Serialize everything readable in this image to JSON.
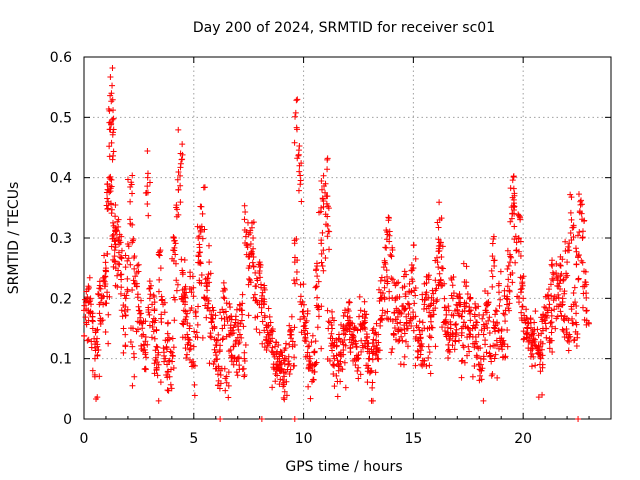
{
  "chart_data": {
    "type": "scatter",
    "title": "Day 200 of 2024, SRMTID for receiver sc01",
    "xlabel": "GPS time / hours",
    "ylabel": "SRMTID / TECUs",
    "xlim": [
      0,
      24
    ],
    "ylim": [
      0,
      0.6
    ],
    "xticks": [
      0,
      5,
      10,
      15,
      20
    ],
    "xtick_labels": [
      "0",
      "5",
      "10",
      "15",
      "20"
    ],
    "yticks": [
      0,
      0.1,
      0.2,
      0.3,
      0.4,
      0.5,
      0.6
    ],
    "ytick_labels": [
      "0",
      "0.1",
      "0.2",
      "0.3",
      "0.4",
      "0.5",
      "0.6"
    ],
    "grid": true,
    "marker": "+",
    "series": [
      {
        "name": "sc01",
        "color": "#ff0000",
        "x": [
          0.0,
          0.2,
          0.4,
          0.6,
          0.8,
          1.0,
          1.1,
          1.2,
          1.25,
          1.3,
          1.35,
          1.4,
          1.5,
          1.7,
          1.9,
          2.1,
          2.3,
          2.5,
          2.7,
          2.9,
          3.1,
          3.3,
          3.5,
          3.7,
          3.9,
          4.1,
          4.3,
          4.4,
          4.5,
          4.6,
          4.8,
          5.0,
          5.2,
          5.4,
          5.6,
          5.8,
          6.0,
          6.2,
          6.4,
          6.6,
          6.8,
          7.0,
          7.2,
          7.4,
          7.6,
          7.8,
          8.0,
          8.2,
          8.4,
          8.6,
          8.8,
          9.0,
          9.2,
          9.4,
          9.6,
          9.7,
          9.8,
          10.0,
          10.2,
          10.4,
          10.6,
          10.8,
          11.0,
          11.1,
          11.2,
          11.4,
          11.6,
          11.8,
          12.0,
          12.2,
          12.4,
          12.6,
          12.8,
          13.0,
          13.2,
          13.4,
          13.6,
          13.8,
          14.0,
          14.2,
          14.4,
          14.6,
          14.8,
          15.0,
          15.2,
          15.4,
          15.6,
          15.8,
          16.0,
          16.2,
          16.3,
          16.4,
          16.6,
          16.8,
          17.0,
          17.2,
          17.4,
          17.6,
          17.8,
          18.0,
          18.2,
          18.4,
          18.6,
          18.8,
          19.0,
          19.2,
          19.4,
          19.5,
          19.6,
          19.8,
          20.0,
          20.2,
          20.4,
          20.6,
          20.8,
          21.0,
          21.2,
          21.4,
          21.6,
          21.8,
          22.0,
          22.2,
          22.4,
          22.5,
          22.6,
          22.8
        ],
        "y": [
          0.18,
          0.22,
          0.15,
          0.12,
          0.2,
          0.25,
          0.36,
          0.48,
          0.54,
          0.43,
          0.32,
          0.28,
          0.3,
          0.24,
          0.2,
          0.36,
          0.27,
          0.18,
          0.14,
          0.4,
          0.19,
          0.12,
          0.25,
          0.1,
          0.07,
          0.3,
          0.38,
          0.44,
          0.24,
          0.19,
          0.15,
          0.12,
          0.3,
          0.34,
          0.22,
          0.16,
          0.11,
          0.08,
          0.2,
          0.14,
          0.12,
          0.1,
          0.18,
          0.31,
          0.29,
          0.22,
          0.26,
          0.19,
          0.14,
          0.11,
          0.09,
          0.08,
          0.1,
          0.14,
          0.26,
          0.48,
          0.41,
          0.17,
          0.12,
          0.09,
          0.22,
          0.35,
          0.39,
          0.32,
          0.16,
          0.1,
          0.08,
          0.15,
          0.17,
          0.14,
          0.12,
          0.18,
          0.16,
          0.1,
          0.12,
          0.14,
          0.18,
          0.31,
          0.27,
          0.2,
          0.16,
          0.22,
          0.19,
          0.25,
          0.13,
          0.12,
          0.21,
          0.17,
          0.23,
          0.33,
          0.25,
          0.16,
          0.14,
          0.2,
          0.18,
          0.15,
          0.22,
          0.2,
          0.17,
          0.09,
          0.14,
          0.19,
          0.27,
          0.13,
          0.12,
          0.18,
          0.26,
          0.34,
          0.37,
          0.3,
          0.2,
          0.15,
          0.14,
          0.12,
          0.1,
          0.17,
          0.19,
          0.24,
          0.22,
          0.2,
          0.26,
          0.33,
          0.16,
          0.27,
          0.36,
          0.22
        ],
        "extra_x": [
          0.1,
          0.3,
          0.5,
          0.7,
          0.9,
          1.05,
          1.15,
          1.45,
          1.6,
          1.8,
          2.0,
          2.2,
          2.4,
          2.6,
          2.8,
          3.0,
          3.2,
          3.4,
          3.6,
          3.8,
          4.0,
          4.2,
          4.55,
          4.7,
          4.9,
          5.1,
          5.3,
          5.5,
          5.7,
          5.9,
          6.1,
          6.3,
          6.5,
          6.7,
          6.9,
          7.1,
          7.3,
          7.5,
          7.7,
          7.9,
          8.1,
          8.3,
          8.5,
          8.7,
          8.9,
          9.1,
          9.3,
          9.5,
          9.9,
          10.1,
          10.3,
          10.5,
          10.7,
          10.9,
          11.3,
          11.5,
          11.7,
          11.9,
          12.1,
          12.3,
          12.5,
          12.7,
          12.9,
          13.1,
          13.3,
          13.5,
          13.7,
          13.9,
          14.1,
          14.3,
          14.5,
          14.7,
          14.9,
          15.1,
          15.3,
          15.5,
          15.7,
          15.9,
          16.1,
          16.5,
          16.7,
          16.9,
          17.1,
          17.3,
          17.5,
          17.7,
          17.9,
          18.1,
          18.3,
          18.5,
          18.7,
          18.9,
          19.1,
          19.3,
          19.7,
          19.9,
          20.1,
          20.3,
          20.5,
          20.7,
          20.9,
          21.1,
          21.3,
          21.5,
          21.7,
          21.9,
          22.1,
          22.3,
          22.7,
          22.9
        ],
        "extra_y": [
          0.16,
          0.2,
          0.1,
          0.19,
          0.23,
          0.21,
          0.4,
          0.25,
          0.29,
          0.15,
          0.29,
          0.12,
          0.22,
          0.16,
          0.11,
          0.2,
          0.16,
          0.09,
          0.19,
          0.13,
          0.11,
          0.23,
          0.18,
          0.14,
          0.21,
          0.17,
          0.26,
          0.2,
          0.26,
          0.18,
          0.13,
          0.15,
          0.06,
          0.17,
          0.16,
          0.14,
          0.1,
          0.25,
          0.3,
          0.17,
          0.2,
          0.13,
          0.16,
          0.12,
          0.1,
          0.06,
          0.09,
          0.12,
          0.19,
          0.15,
          0.1,
          0.11,
          0.17,
          0.28,
          0.15,
          0.12,
          0.11,
          0.14,
          0.16,
          0.13,
          0.1,
          0.15,
          0.12,
          0.08,
          0.13,
          0.2,
          0.23,
          0.2,
          0.14,
          0.18,
          0.13,
          0.16,
          0.21,
          0.17,
          0.14,
          0.19,
          0.12,
          0.18,
          0.26,
          0.18,
          0.15,
          0.13,
          0.19,
          0.16,
          0.12,
          0.15,
          0.16,
          0.08,
          0.18,
          0.12,
          0.15,
          0.21,
          0.13,
          0.22,
          0.28,
          0.21,
          0.16,
          0.13,
          0.16,
          0.11,
          0.15,
          0.18,
          0.13,
          0.2,
          0.23,
          0.17,
          0.14,
          0.19,
          0.3,
          0.18
        ],
        "zero_x": [
          6.2,
          8.1,
          9.6,
          22.5
        ]
      }
    ]
  }
}
